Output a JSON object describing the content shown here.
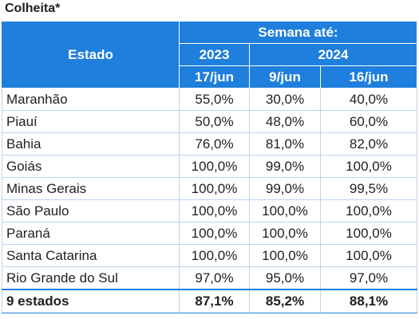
{
  "title": "Colheita*",
  "header": {
    "estado": "Estado",
    "semana": "Semana até:",
    "years": [
      "2023",
      "2024"
    ],
    "dates": [
      "17/jun",
      "9/jun",
      "16/jun"
    ]
  },
  "rows": [
    {
      "estado": "Maranhão",
      "v1": "55,0%",
      "v2": "30,0%",
      "v3": "40,0%"
    },
    {
      "estado": "Piauí",
      "v1": "50,0%",
      "v2": "48,0%",
      "v3": "60,0%"
    },
    {
      "estado": "Bahia",
      "v1": "76,0%",
      "v2": "81,0%",
      "v3": "82,0%"
    },
    {
      "estado": "Goiás",
      "v1": "100,0%",
      "v2": "99,0%",
      "v3": "100,0%"
    },
    {
      "estado": "Minas Gerais",
      "v1": "100,0%",
      "v2": "99,0%",
      "v3": "99,5%"
    },
    {
      "estado": "São Paulo",
      "v1": "100,0%",
      "v2": "100,0%",
      "v3": "100,0%"
    },
    {
      "estado": "Paraná",
      "v1": "100,0%",
      "v2": "100,0%",
      "v3": "100,0%"
    },
    {
      "estado": "Santa Catarina",
      "v1": "100,0%",
      "v2": "100,0%",
      "v3": "100,0%"
    },
    {
      "estado": "Rio Grande do Sul",
      "v1": "97,0%",
      "v2": "95,0%",
      "v3": "97,0%"
    }
  ],
  "total": {
    "estado": "9 estados",
    "v1": "87,1%",
    "v2": "85,2%",
    "v3": "88,1%"
  }
}
